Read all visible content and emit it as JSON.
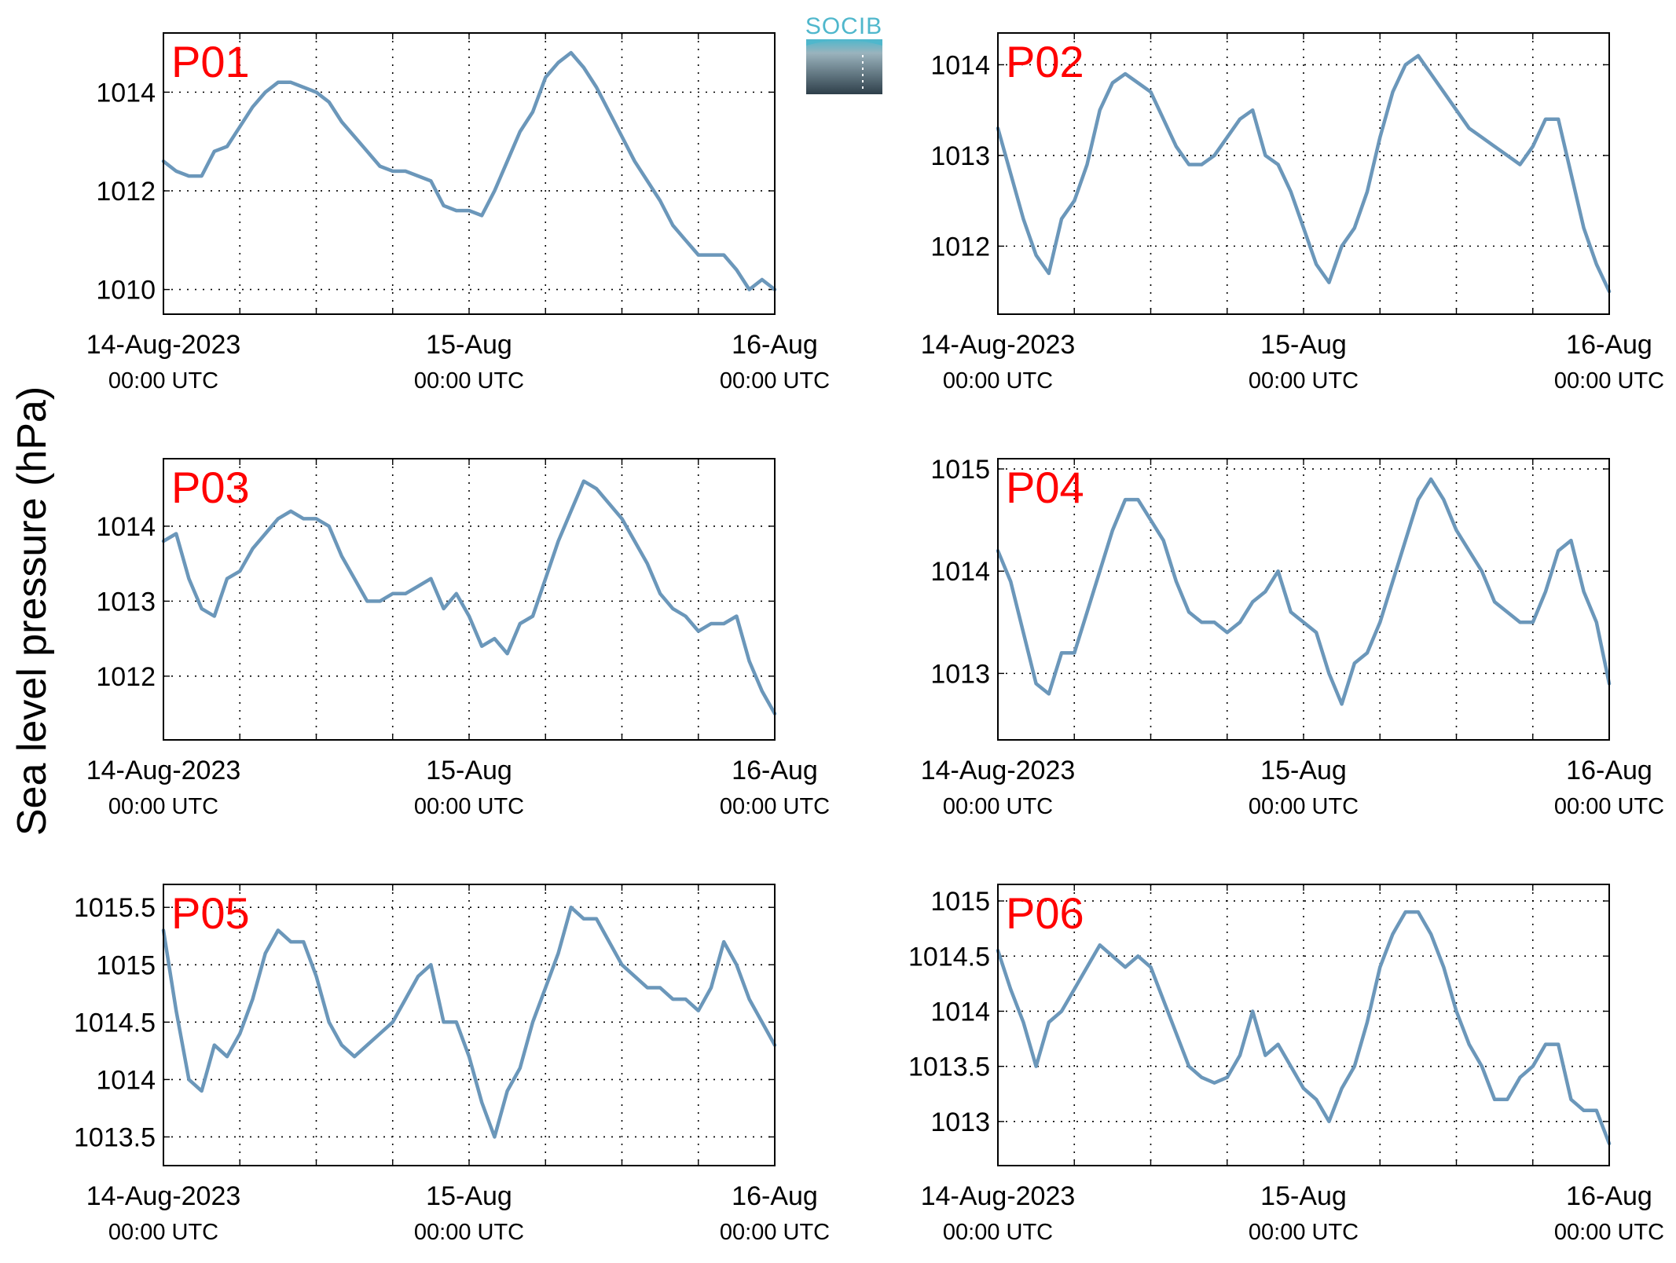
{
  "figure": {
    "ylabel": "Sea level pressure (hPa)",
    "logo_text": "SOCIB",
    "line_color": "#6b97ba",
    "label_color": "#ff0000"
  },
  "chart_data": [
    {
      "type": "line",
      "label": "P01",
      "x_range_hours": [
        0,
        48
      ],
      "x_ticks": [
        {
          "hour": 0,
          "label": "14-Aug-2023",
          "sublabel": "00:00 UTC"
        },
        {
          "hour": 24,
          "label": "15-Aug",
          "sublabel": "00:00 UTC"
        },
        {
          "hour": 48,
          "label": "16-Aug",
          "sublabel": "00:00 UTC"
        }
      ],
      "ylim": [
        1009.5,
        1015.2
      ],
      "y_ticks": [
        1010,
        1012,
        1014
      ],
      "y_tick_labels": [
        "1010",
        "1012",
        "1014"
      ],
      "grid": true,
      "series": [
        {
          "x": [
            0,
            1,
            2,
            3,
            4,
            5,
            6,
            7,
            8,
            9,
            10,
            11,
            12,
            13,
            14,
            15,
            16,
            17,
            18,
            19,
            20,
            21,
            22,
            23,
            24,
            25,
            26,
            27,
            28,
            29,
            30,
            31,
            32,
            33,
            34,
            35,
            36,
            37,
            38,
            39,
            40,
            41,
            42,
            43,
            44,
            45,
            46,
            47,
            48
          ],
          "y": [
            1012.6,
            1012.4,
            1012.3,
            1012.3,
            1012.8,
            1012.9,
            1013.3,
            1013.7,
            1014.0,
            1014.2,
            1014.2,
            1014.1,
            1014.0,
            1013.8,
            1013.4,
            1013.1,
            1012.8,
            1012.5,
            1012.4,
            1012.4,
            1012.3,
            1012.2,
            1011.7,
            1011.6,
            1011.6,
            1011.5,
            1012.0,
            1012.6,
            1013.2,
            1013.6,
            1014.3,
            1014.6,
            1014.8,
            1014.5,
            1014.1,
            1013.6,
            1013.1,
            1012.6,
            1012.2,
            1011.8,
            1011.3,
            1011.0,
            1010.7,
            1010.7,
            1010.7,
            1010.4,
            1010.0,
            1010.2,
            1010.0
          ]
        }
      ]
    },
    {
      "type": "line",
      "label": "P02",
      "x_range_hours": [
        0,
        48
      ],
      "x_ticks": [
        {
          "hour": 0,
          "label": "14-Aug-2023",
          "sublabel": "00:00 UTC"
        },
        {
          "hour": 24,
          "label": "15-Aug",
          "sublabel": "00:00 UTC"
        },
        {
          "hour": 48,
          "label": "16-Aug",
          "sublabel": "00:00 UTC"
        }
      ],
      "ylim": [
        1011.25,
        1014.35
      ],
      "y_ticks": [
        1012,
        1013,
        1014
      ],
      "y_tick_labels": [
        "1012",
        "1013",
        "1014"
      ],
      "grid": true,
      "series": [
        {
          "x": [
            0,
            1,
            2,
            3,
            4,
            5,
            6,
            7,
            8,
            9,
            10,
            11,
            12,
            13,
            14,
            15,
            16,
            17,
            18,
            19,
            20,
            21,
            22,
            23,
            24,
            25,
            26,
            27,
            28,
            29,
            30,
            31,
            32,
            33,
            34,
            35,
            36,
            37,
            38,
            39,
            40,
            41,
            42,
            43,
            44,
            45,
            46,
            47,
            48
          ],
          "y": [
            1013.3,
            1012.8,
            1012.3,
            1011.9,
            1011.7,
            1012.3,
            1012.5,
            1012.9,
            1013.5,
            1013.8,
            1013.9,
            1013.8,
            1013.7,
            1013.4,
            1013.1,
            1012.9,
            1012.9,
            1013.0,
            1013.2,
            1013.4,
            1013.5,
            1013.0,
            1012.9,
            1012.6,
            1012.2,
            1011.8,
            1011.6,
            1012.0,
            1012.2,
            1012.6,
            1013.2,
            1013.7,
            1014.0,
            1014.1,
            1013.9,
            1013.7,
            1013.5,
            1013.3,
            1013.2,
            1013.1,
            1013.0,
            1012.9,
            1013.1,
            1013.4,
            1013.4,
            1012.8,
            1012.2,
            1011.8,
            1011.5
          ]
        }
      ]
    },
    {
      "type": "line",
      "label": "P03",
      "x_range_hours": [
        0,
        48
      ],
      "x_ticks": [
        {
          "hour": 0,
          "label": "14-Aug-2023",
          "sublabel": "00:00 UTC"
        },
        {
          "hour": 24,
          "label": "15-Aug",
          "sublabel": "00:00 UTC"
        },
        {
          "hour": 48,
          "label": "16-Aug",
          "sublabel": "00:00 UTC"
        }
      ],
      "ylim": [
        1011.15,
        1014.9
      ],
      "y_ticks": [
        1012,
        1013,
        1014
      ],
      "y_tick_labels": [
        "1012",
        "1013",
        "1014"
      ],
      "grid": true,
      "series": [
        {
          "x": [
            0,
            1,
            2,
            3,
            4,
            5,
            6,
            7,
            8,
            9,
            10,
            11,
            12,
            13,
            14,
            15,
            16,
            17,
            18,
            19,
            20,
            21,
            22,
            23,
            24,
            25,
            26,
            27,
            28,
            29,
            30,
            31,
            32,
            33,
            34,
            35,
            36,
            37,
            38,
            39,
            40,
            41,
            42,
            43,
            44,
            45,
            46,
            47,
            48
          ],
          "y": [
            1013.8,
            1013.9,
            1013.3,
            1012.9,
            1012.8,
            1013.3,
            1013.4,
            1013.7,
            1013.9,
            1014.1,
            1014.2,
            1014.1,
            1014.1,
            1014.0,
            1013.6,
            1013.3,
            1013.0,
            1013.0,
            1013.1,
            1013.1,
            1013.2,
            1013.3,
            1012.9,
            1013.1,
            1012.8,
            1012.4,
            1012.5,
            1012.3,
            1012.7,
            1012.8,
            1013.3,
            1013.8,
            1014.2,
            1014.6,
            1014.5,
            1014.3,
            1014.1,
            1013.8,
            1013.5,
            1013.1,
            1012.9,
            1012.8,
            1012.6,
            1012.7,
            1012.7,
            1012.8,
            1012.2,
            1011.8,
            1011.5
          ]
        }
      ]
    },
    {
      "type": "line",
      "label": "P04",
      "x_range_hours": [
        0,
        48
      ],
      "x_ticks": [
        {
          "hour": 0,
          "label": "14-Aug-2023",
          "sublabel": "00:00 UTC"
        },
        {
          "hour": 24,
          "label": "15-Aug",
          "sublabel": "00:00 UTC"
        },
        {
          "hour": 48,
          "label": "16-Aug",
          "sublabel": "00:00 UTC"
        }
      ],
      "ylim": [
        1012.35,
        1015.1
      ],
      "y_ticks": [
        1013,
        1014,
        1015
      ],
      "y_tick_labels": [
        "1013",
        "1014",
        "1015"
      ],
      "grid": true,
      "series": [
        {
          "x": [
            0,
            1,
            2,
            3,
            4,
            5,
            6,
            7,
            8,
            9,
            10,
            11,
            12,
            13,
            14,
            15,
            16,
            17,
            18,
            19,
            20,
            21,
            22,
            23,
            24,
            25,
            26,
            27,
            28,
            29,
            30,
            31,
            32,
            33,
            34,
            35,
            36,
            37,
            38,
            39,
            40,
            41,
            42,
            43,
            44,
            45,
            46,
            47,
            48
          ],
          "y": [
            1014.2,
            1013.9,
            1013.4,
            1012.9,
            1012.8,
            1013.2,
            1013.2,
            1013.6,
            1014.0,
            1014.4,
            1014.7,
            1014.7,
            1014.5,
            1014.3,
            1013.9,
            1013.6,
            1013.5,
            1013.5,
            1013.4,
            1013.5,
            1013.7,
            1013.8,
            1014.0,
            1013.6,
            1013.5,
            1013.4,
            1013.0,
            1012.7,
            1013.1,
            1013.2,
            1013.5,
            1013.9,
            1014.3,
            1014.7,
            1014.9,
            1014.7,
            1014.4,
            1014.2,
            1014.0,
            1013.7,
            1013.6,
            1013.5,
            1013.5,
            1013.8,
            1014.2,
            1014.3,
            1013.8,
            1013.5,
            1012.9
          ]
        }
      ]
    },
    {
      "type": "line",
      "label": "P05",
      "x_range_hours": [
        0,
        48
      ],
      "x_ticks": [
        {
          "hour": 0,
          "label": "14-Aug-2023",
          "sublabel": "00:00 UTC"
        },
        {
          "hour": 24,
          "label": "15-Aug",
          "sublabel": "00:00 UTC"
        },
        {
          "hour": 48,
          "label": "16-Aug",
          "sublabel": "00:00 UTC"
        }
      ],
      "ylim": [
        1013.25,
        1015.7
      ],
      "y_ticks": [
        1013.5,
        1014,
        1014.5,
        1015,
        1015.5
      ],
      "y_tick_labels": [
        "1013.5",
        "1014",
        "1014.5",
        "1015",
        "1015.5"
      ],
      "grid": true,
      "series": [
        {
          "x": [
            0,
            1,
            2,
            3,
            4,
            5,
            6,
            7,
            8,
            9,
            10,
            11,
            12,
            13,
            14,
            15,
            16,
            17,
            18,
            19,
            20,
            21,
            22,
            23,
            24,
            25,
            26,
            27,
            28,
            29,
            30,
            31,
            32,
            33,
            34,
            35,
            36,
            37,
            38,
            39,
            40,
            41,
            42,
            43,
            44,
            45,
            46,
            47,
            48
          ],
          "y": [
            1015.3,
            1014.6,
            1014.0,
            1013.9,
            1014.3,
            1014.2,
            1014.4,
            1014.7,
            1015.1,
            1015.3,
            1015.2,
            1015.2,
            1014.9,
            1014.5,
            1014.3,
            1014.2,
            1014.3,
            1014.4,
            1014.5,
            1014.7,
            1014.9,
            1015.0,
            1014.5,
            1014.5,
            1014.2,
            1013.8,
            1013.5,
            1013.9,
            1014.1,
            1014.5,
            1014.8,
            1015.1,
            1015.5,
            1015.4,
            1015.4,
            1015.2,
            1015.0,
            1014.9,
            1014.8,
            1014.8,
            1014.7,
            1014.7,
            1014.6,
            1014.8,
            1015.2,
            1015.0,
            1014.7,
            1014.5,
            1014.3
          ]
        }
      ]
    },
    {
      "type": "line",
      "label": "P06",
      "x_range_hours": [
        0,
        48
      ],
      "x_ticks": [
        {
          "hour": 0,
          "label": "14-Aug-2023",
          "sublabel": "00:00 UTC"
        },
        {
          "hour": 24,
          "label": "15-Aug",
          "sublabel": "00:00 UTC"
        },
        {
          "hour": 48,
          "label": "16-Aug",
          "sublabel": "00:00 UTC"
        }
      ],
      "ylim": [
        1012.6,
        1015.15
      ],
      "y_ticks": [
        1013,
        1013.5,
        1014,
        1014.5,
        1015
      ],
      "y_tick_labels": [
        "1013",
        "1013.5",
        "1014",
        "1014.5",
        "1015"
      ],
      "grid": true,
      "series": [
        {
          "x": [
            0,
            1,
            2,
            3,
            4,
            5,
            6,
            7,
            8,
            9,
            10,
            11,
            12,
            13,
            14,
            15,
            16,
            17,
            18,
            19,
            20,
            21,
            22,
            23,
            24,
            25,
            26,
            27,
            28,
            29,
            30,
            31,
            32,
            33,
            34,
            35,
            36,
            37,
            38,
            39,
            40,
            41,
            42,
            43,
            44,
            45,
            46,
            47,
            48
          ],
          "y": [
            1014.55,
            1014.2,
            1013.9,
            1013.5,
            1013.9,
            1014.0,
            1014.2,
            1014.4,
            1014.6,
            1014.5,
            1014.4,
            1014.5,
            1014.4,
            1014.1,
            1013.8,
            1013.5,
            1013.4,
            1013.35,
            1013.4,
            1013.6,
            1014.0,
            1013.6,
            1013.7,
            1013.5,
            1013.3,
            1013.2,
            1013.0,
            1013.3,
            1013.5,
            1013.9,
            1014.4,
            1014.7,
            1014.9,
            1014.9,
            1014.7,
            1014.4,
            1014.0,
            1013.7,
            1013.5,
            1013.2,
            1013.2,
            1013.4,
            1013.5,
            1013.7,
            1013.7,
            1013.2,
            1013.1,
            1013.1,
            1012.8
          ]
        }
      ]
    }
  ]
}
